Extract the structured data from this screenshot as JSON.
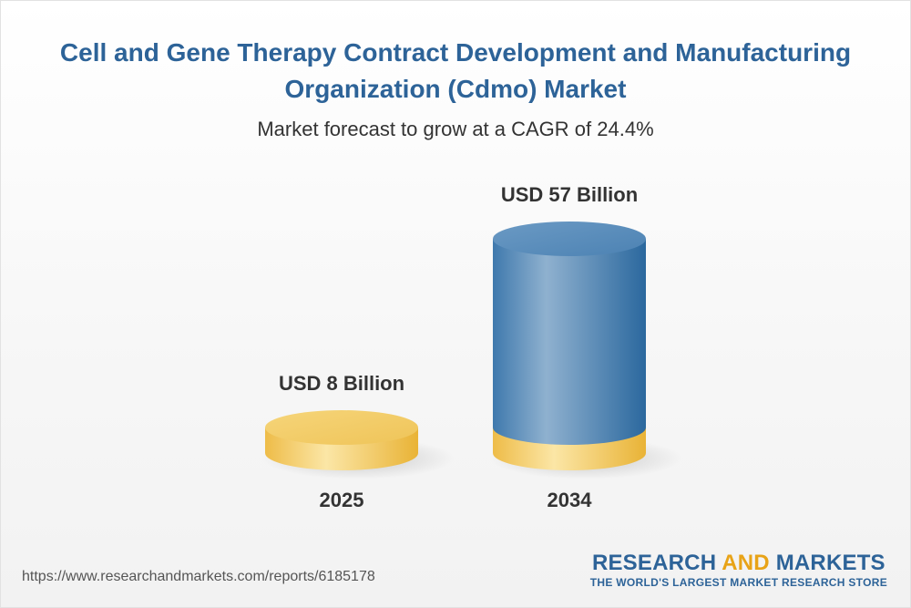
{
  "chart_data": {
    "type": "bar",
    "title": "Cell and Gene Therapy Contract Development and Manufacturing Organization (Cdmo) Market",
    "subtitle": "Market forecast to grow at a CAGR of 24.4%",
    "categories": [
      "2025",
      "2034"
    ],
    "values": [
      8,
      57
    ],
    "value_labels": [
      "USD 8 Billion",
      "USD 57 Billion"
    ],
    "unit": "USD Billion",
    "grid": false,
    "legend": "none"
  },
  "colors": {
    "title": "#2d6398",
    "bar_base": "#f4cc68",
    "bar_growth": "#4f84b5",
    "text": "#333333"
  },
  "footer": {
    "source_url": "https://www.researchandmarkets.com/reports/6185178",
    "brand_part1": "RESEARCH",
    "brand_part2": "AND",
    "brand_part3": "MARKETS",
    "brand_tagline": "THE WORLD'S LARGEST MARKET RESEARCH STORE"
  }
}
